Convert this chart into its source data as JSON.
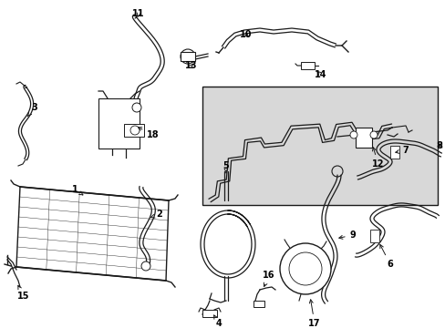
{
  "background_color": "#ffffff",
  "inset_bg": "#e0e0e0",
  "line_color": "#1a1a1a",
  "text_color": "#000000",
  "figsize": [
    4.89,
    3.6
  ],
  "dpi": 100,
  "lw": 1.0,
  "lw2": 1.5
}
